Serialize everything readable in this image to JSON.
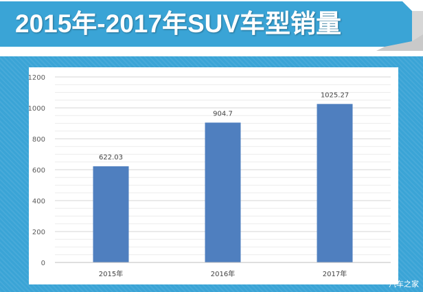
{
  "title": "2015年-2017年SUV车型销量",
  "watermark": "汽车之家",
  "colors": {
    "banner": "#3aa4d6",
    "bar": "#4f7fbf",
    "grid": "#d9d9d9"
  },
  "chart_data": {
    "type": "bar",
    "categories": [
      "2015年",
      "2016年",
      "2017年"
    ],
    "values": [
      622.03,
      904.7,
      1025.27
    ],
    "data_labels": [
      "622.03",
      "904.7",
      "1025.27"
    ],
    "ylim": [
      0,
      1200
    ],
    "yticks": [
      0,
      200,
      400,
      600,
      800,
      1000,
      1200
    ],
    "grid": true,
    "title": "",
    "xlabel": "",
    "ylabel": ""
  }
}
